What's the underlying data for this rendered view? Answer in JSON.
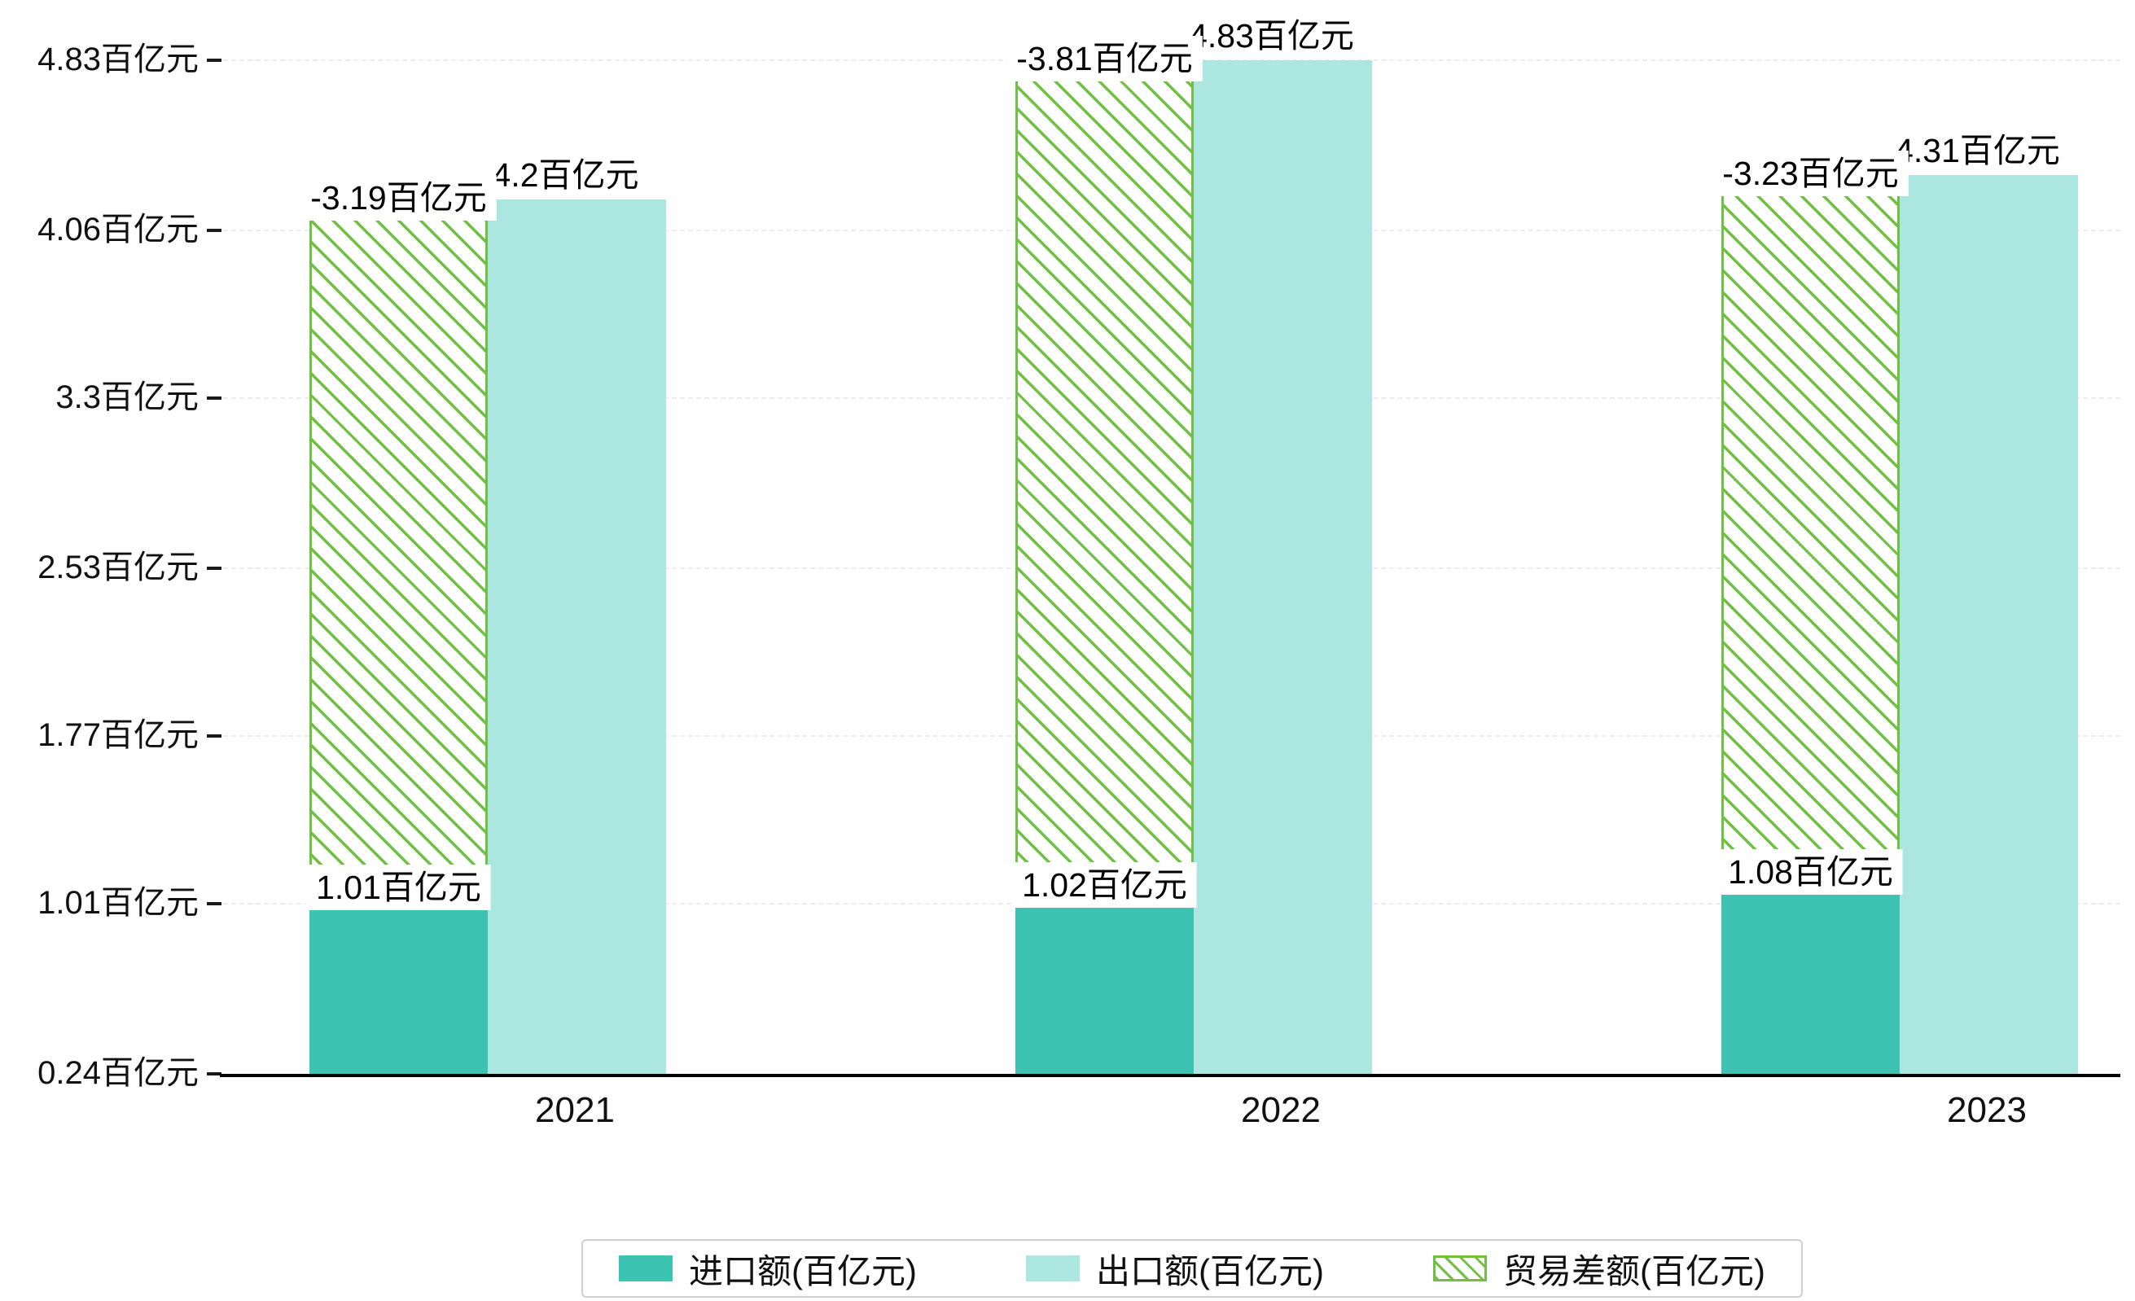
{
  "chart_data": {
    "type": "bar",
    "title": "",
    "categories": [
      "2021",
      "2022",
      "2023"
    ],
    "series": [
      {
        "name": "进口额(百亿元)",
        "values": [
          1.01,
          1.02,
          1.08
        ],
        "labels": [
          "1.01百亿元",
          "1.02百亿元",
          "1.08百亿元"
        ],
        "color": "#3cc3b2",
        "style": "solid"
      },
      {
        "name": "出口额(百亿元)",
        "values": [
          4.2,
          4.83,
          4.31
        ],
        "labels": [
          "4.2百亿元",
          "4.83百亿元",
          "4.31百亿元"
        ],
        "color": "#abe7e0",
        "style": "solid"
      },
      {
        "name": "贸易差额(百亿元)",
        "values": [
          -3.19,
          -3.81,
          -3.23
        ],
        "labels": [
          "-3.19百亿元",
          "-3.81百亿元",
          "-3.23百亿元"
        ],
        "color": "#6fc043",
        "style": "hatched",
        "note": "hatched bar spans from import value up to export value in the left column"
      }
    ],
    "yticks": [
      "0.24百亿元",
      "1.01百亿元",
      "1.77百亿元",
      "2.53百亿元",
      "3.3百亿元",
      "4.06百亿元",
      "4.83百亿元"
    ],
    "ytick_values": [
      0.24,
      1.01,
      1.77,
      2.53,
      3.3,
      4.06,
      4.83
    ],
    "ylim": [
      0.24,
      4.83
    ],
    "grid": true,
    "legend_position": "bottom"
  }
}
